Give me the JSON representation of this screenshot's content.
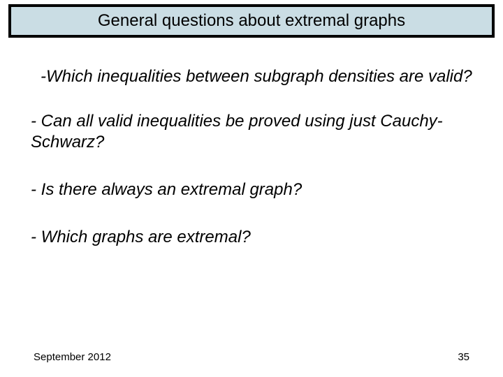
{
  "slide": {
    "title": "General questions about extremal graphs",
    "title_bg": "#cadde4",
    "title_border_color": "#000000",
    "title_border_width": 4,
    "title_fontsize": 24,
    "body_fontsize": 24,
    "body_font_style": "italic",
    "bullets": [
      "-Which inequalities between subgraph densities are valid?",
      "- Can all valid inequalities be proved using just Cauchy-Schwarz?",
      "- Is there always an extremal graph?",
      "- Which graphs are extremal?"
    ],
    "footer_date": "September 2012",
    "page_number": "35",
    "footer_fontsize": 15,
    "background_color": "#ffffff",
    "text_color": "#000000"
  }
}
